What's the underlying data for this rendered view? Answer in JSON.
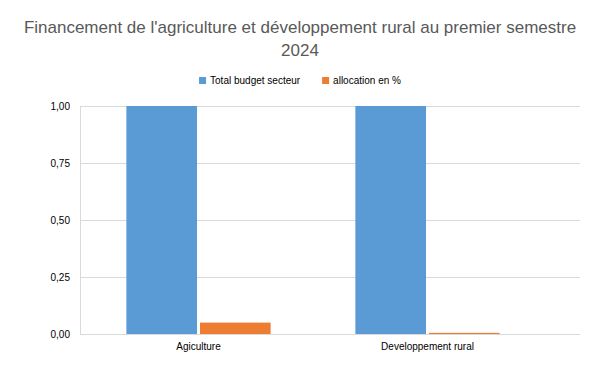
{
  "chart_data": {
    "type": "bar",
    "title": "Financement de l'agriculture et développement rural au premier semestre 2024",
    "categories": [
      "Agiculture",
      "Developpement rural"
    ],
    "series": [
      {
        "name": "Total budget secteur",
        "color": "#5b9bd5",
        "values": [
          1.0,
          1.0
        ]
      },
      {
        "name": "allocation en %",
        "color": "#ed7d31",
        "values": [
          0.05,
          0.005
        ]
      }
    ],
    "ylim": [
      0,
      1
    ],
    "yticks": [
      {
        "value": 0,
        "label": "0,00"
      },
      {
        "value": 0.25,
        "label": "0,25"
      },
      {
        "value": 0.5,
        "label": "0,50"
      },
      {
        "value": 0.75,
        "label": "0,75"
      },
      {
        "value": 1,
        "label": "1,00"
      }
    ],
    "grid": true,
    "legend": "top"
  }
}
